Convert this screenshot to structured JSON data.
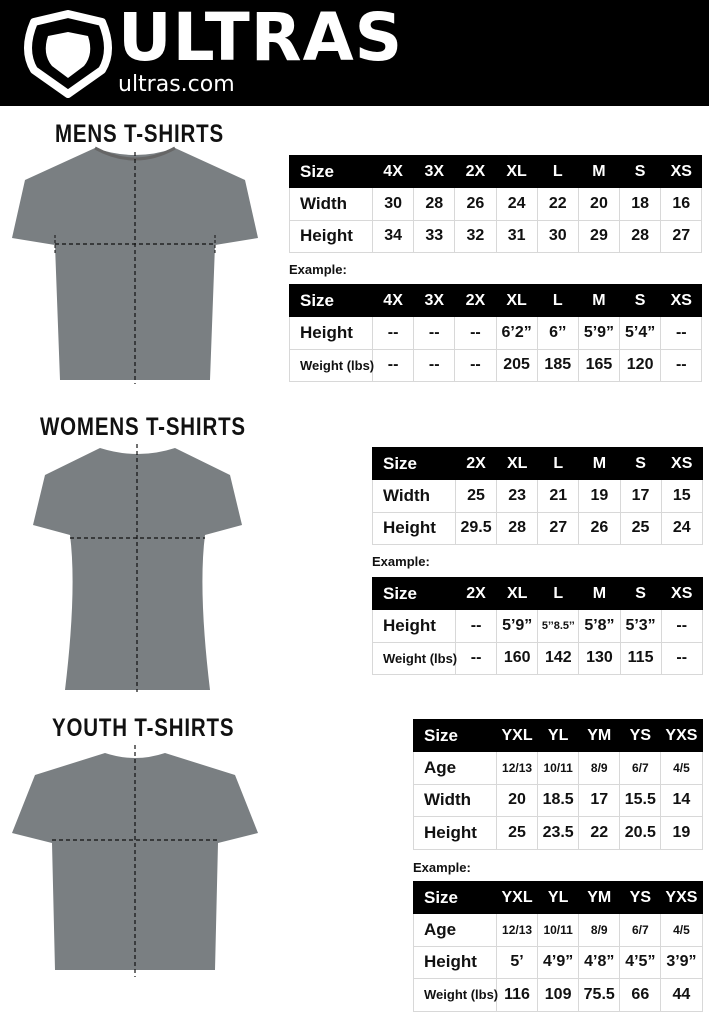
{
  "brand": {
    "name": "ULTRAS",
    "site": "ultras.com"
  },
  "colors": {
    "header": "#000000",
    "shirt": "#7a7f82"
  },
  "example_label": "Example:",
  "sections": [
    {
      "title": "MENS T-SHIRTS",
      "size_table": {
        "headers": [
          "Size",
          "4X",
          "3X",
          "2X",
          "XL",
          "L",
          "M",
          "S",
          "XS"
        ],
        "rows": [
          [
            "Width",
            "30",
            "28",
            "26",
            "24",
            "22",
            "20",
            "18",
            "16"
          ],
          [
            "Height",
            "34",
            "33",
            "32",
            "31",
            "30",
            "29",
            "28",
            "27"
          ]
        ]
      },
      "example_table": {
        "headers": [
          "Size",
          "4X",
          "3X",
          "2X",
          "XL",
          "L",
          "M",
          "S",
          "XS"
        ],
        "rows": [
          [
            "Height",
            "--",
            "--",
            "--",
            "6’2”",
            "6’’",
            "5’9”",
            "5’4”",
            "--"
          ],
          [
            "Weight (lbs)",
            "--",
            "--",
            "--",
            "205",
            "185",
            "165",
            "120",
            "--"
          ]
        ]
      }
    },
    {
      "title": "WOMENS T-SHIRTS",
      "size_table": {
        "headers": [
          "Size",
          "2X",
          "XL",
          "L",
          "M",
          "S",
          "XS"
        ],
        "rows": [
          [
            "Width",
            "25",
            "23",
            "21",
            "19",
            "17",
            "15"
          ],
          [
            "Height",
            "29.5",
            "28",
            "27",
            "26",
            "25",
            "24"
          ]
        ]
      },
      "example_table": {
        "headers": [
          "Size",
          "2X",
          "XL",
          "L",
          "M",
          "S",
          "XS"
        ],
        "rows": [
          [
            "Height",
            "--",
            "5’9”",
            "5’’8.5’’",
            "5’8”",
            "5’3”",
            "--"
          ],
          [
            "Weight (lbs)",
            "--",
            "160",
            "142",
            "130",
            "115",
            "--"
          ]
        ]
      }
    },
    {
      "title": "YOUTH T-SHIRTS",
      "size_table": {
        "headers": [
          "Size",
          "YXL",
          "YL",
          "YM",
          "YS",
          "YXS"
        ],
        "rows": [
          [
            "Age",
            "12/13",
            "10/11",
            "8/9",
            "6/7",
            "4/5"
          ],
          [
            "Width",
            "20",
            "18.5",
            "17",
            "15.5",
            "14"
          ],
          [
            "Height",
            "25",
            "23.5",
            "22",
            "20.5",
            "19"
          ]
        ]
      },
      "example_table": {
        "headers": [
          "Size",
          "YXL",
          "YL",
          "YM",
          "YS",
          "YXS"
        ],
        "rows": [
          [
            "Age",
            "12/13",
            "10/11",
            "8/9",
            "6/7",
            "4/5"
          ],
          [
            "Height",
            "5’",
            "4’9”",
            "4’8”",
            "4’5”",
            "3’9”"
          ],
          [
            "Weight (lbs)",
            "116",
            "109",
            "75.5",
            "66",
            "44"
          ]
        ]
      }
    }
  ]
}
